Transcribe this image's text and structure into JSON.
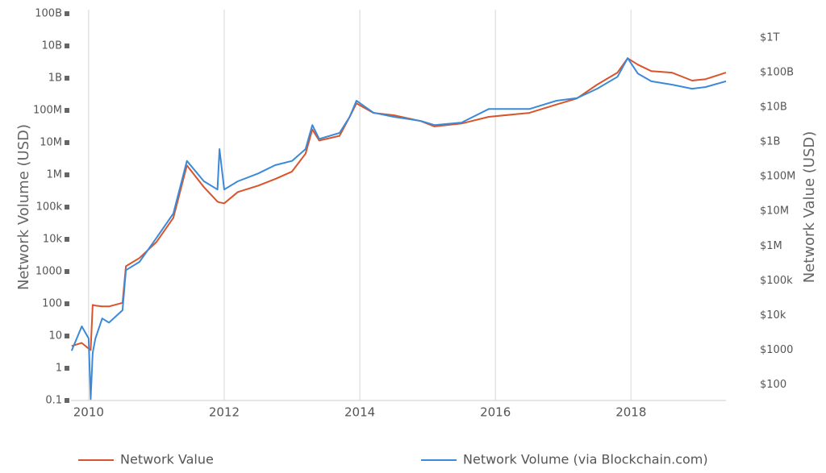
{
  "chart_data": {
    "type": "line",
    "y_label": "Network Volume (USD)",
    "y2_label": "Network Value (USD)",
    "yscale": "log",
    "y2scale": "log",
    "grid": "x",
    "legend": "bottom",
    "xlim": [
      2009.74,
      2019.4
    ],
    "xticks": [
      2010,
      2012,
      2014,
      2016,
      2018
    ],
    "ylim": [
      0.1,
      100000000000
    ],
    "yticks": [
      {
        "value": 100000000000,
        "label": "100B"
      },
      {
        "value": 10000000000,
        "label": "10B"
      },
      {
        "value": 1000000000,
        "label": "1B"
      },
      {
        "value": 100000000,
        "label": "100M"
      },
      {
        "value": 10000000,
        "label": "10M"
      },
      {
        "value": 1000000,
        "label": "1M"
      },
      {
        "value": 100000,
        "label": "100k"
      },
      {
        "value": 10000,
        "label": "10k"
      },
      1000,
      100,
      10,
      1,
      0.1
    ],
    "y2lim": [
      35,
      5000000000000
    ],
    "y2ticks": [
      {
        "value": 1000000000000,
        "label": "$1T"
      },
      {
        "value": 100000000000,
        "label": "$100B"
      },
      {
        "value": 10000000000,
        "label": "$10B"
      },
      {
        "value": 1000000000,
        "label": "$1B"
      },
      {
        "value": 100000000,
        "label": "$100M"
      },
      {
        "value": 10000000,
        "label": "$10M"
      },
      {
        "value": 1000000,
        "label": "$1M"
      },
      {
        "value": 100000,
        "label": "$100k"
      },
      {
        "value": 10000,
        "label": "$10k"
      },
      {
        "value": 1000,
        "label": "$1000"
      },
      {
        "value": 100,
        "label": "$100"
      }
    ],
    "x": [
      2009.75,
      2009.9,
      2010.0,
      2010.03,
      2010.06,
      2010.1,
      2010.2,
      2010.3,
      2010.5,
      2010.55,
      2010.75,
      2011.0,
      2011.25,
      2011.45,
      2011.7,
      2011.9,
      2011.93,
      2012.0,
      2012.2,
      2012.5,
      2012.75,
      2013.0,
      2013.2,
      2013.3,
      2013.4,
      2013.7,
      2013.85,
      2013.95,
      2014.2,
      2014.5,
      2014.9,
      2015.1,
      2015.5,
      2015.9,
      2016.5,
      2016.9,
      2017.2,
      2017.5,
      2017.8,
      2017.95,
      2018.1,
      2018.3,
      2018.6,
      2018.9,
      2019.1,
      2019.4
    ],
    "series": [
      {
        "name": "Network Value",
        "color": "#d9542b",
        "axis": "y2",
        "values": [
          1300,
          1600,
          1100,
          1000,
          20000,
          19000,
          18000,
          18000,
          23000,
          260000,
          450000,
          1300000,
          6500000,
          210000000,
          50000000,
          19000000,
          18000000,
          17000000,
          36000000,
          55000000,
          85000000,
          140000000,
          460000000,
          2300000000,
          1100000000,
          1500000000,
          5300000000,
          13000000000,
          6900000000,
          5900000000,
          4000000000,
          2800000000,
          3400000000,
          5300000000,
          6900000000,
          12000000000,
          18000000000,
          45000000000,
          100000000000,
          260000000000,
          170000000000,
          110000000000,
          100000000000,
          59000000000,
          65000000000,
          100000000000
        ]
      },
      {
        "name": "Network Volume (via Blockchain.com)",
        "color": "#3b8ad9",
        "values": [
          3.5,
          20,
          8.4,
          0.11,
          3,
          8.4,
          35,
          26,
          63,
          1100,
          2000,
          11000,
          63000,
          2700000,
          630000,
          350000,
          6300000,
          350000,
          630000,
          1100000,
          2000000,
          2700000,
          6300000,
          35000000,
          13000000,
          20000000,
          63000000,
          200000000,
          85000000,
          63000000,
          47000000,
          35000000,
          42000000,
          110000000,
          110000000,
          200000000,
          240000000,
          470000000,
          1100000000,
          4200000000,
          1400000000,
          800000000,
          630000000,
          470000000,
          530000000,
          800000000
        ]
      }
    ]
  }
}
